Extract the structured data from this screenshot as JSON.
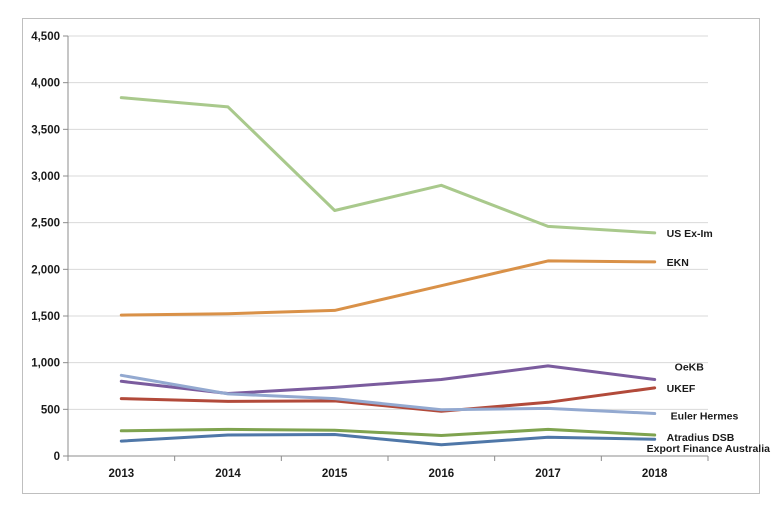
{
  "chart_data": {
    "type": "line",
    "title": "",
    "xlabel": "",
    "ylabel": "",
    "x": [
      "2013",
      "2014",
      "2015",
      "2016",
      "2017",
      "2018"
    ],
    "ylim": [
      0,
      4500
    ],
    "yticks": [
      "0",
      "500",
      "1,000",
      "1,500",
      "2,000",
      "2,500",
      "3,000",
      "3,500",
      "4,000",
      "4,500"
    ],
    "grid": true,
    "legend": "end-of-line labels",
    "series": [
      {
        "name": "US Ex-Im",
        "color": "#a9c98c",
        "values": [
          3840,
          3740,
          2630,
          2900,
          2460,
          2390
        ]
      },
      {
        "name": "EKN",
        "color": "#d99148",
        "values": [
          1510,
          1525,
          1560,
          1825,
          2090,
          2080
        ]
      },
      {
        "name": "OeKB",
        "color": "#7b5c9e",
        "values": [
          800,
          670,
          735,
          820,
          965,
          820
        ]
      },
      {
        "name": "UKEF",
        "color": "#b24a3a",
        "values": [
          615,
          585,
          590,
          480,
          575,
          730
        ]
      },
      {
        "name": "Euler Hermes",
        "color": "#93a9d0",
        "values": [
          865,
          665,
          615,
          495,
          510,
          455
        ]
      },
      {
        "name": "Atradius DSB",
        "color": "#7fa34f",
        "values": [
          270,
          285,
          275,
          220,
          285,
          225
        ]
      },
      {
        "name": "Export Finance Australia",
        "color": "#4f77a8",
        "values": [
          160,
          225,
          230,
          120,
          200,
          180
        ]
      }
    ]
  }
}
